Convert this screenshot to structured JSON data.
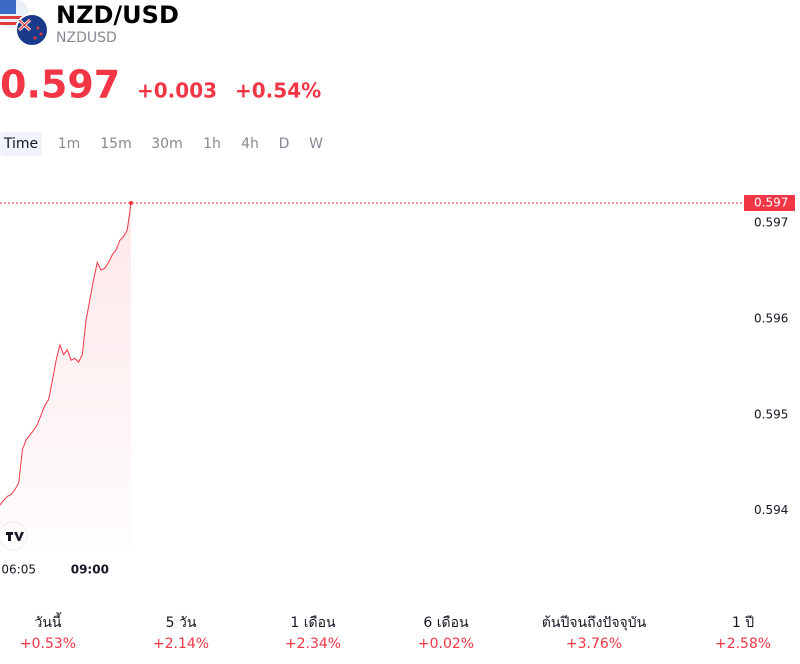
{
  "header": {
    "symbol": "NZD/USD",
    "code": "NZDUSD",
    "price": "0.597",
    "change": "+0.003",
    "change_percent": "+0.54%"
  },
  "timeframes": [
    "Time",
    "1m",
    "15m",
    "30m",
    "1h",
    "4h",
    "D",
    "W"
  ],
  "selected_timeframe": 0,
  "chart_data": {
    "type": "line",
    "categories": [
      null,
      null,
      null,
      null,
      null,
      "06:05",
      null,
      null,
      null,
      null,
      null,
      null,
      null,
      null,
      null,
      null,
      null,
      null,
      null,
      null,
      null,
      null,
      null,
      null,
      "09:00",
      null,
      null,
      null,
      null,
      null,
      null,
      null,
      null,
      null,
      null,
      null
    ],
    "series": [
      {
        "name": "NZDUSD",
        "color": "#f23645",
        "values": [
          0.59406,
          0.59411,
          0.59415,
          0.59417,
          0.59422,
          0.59429,
          0.59464,
          0.59474,
          0.59479,
          0.59484,
          0.5949,
          0.595,
          0.5951,
          0.59516,
          0.59536,
          0.59557,
          0.59573,
          0.59563,
          0.59568,
          0.59557,
          0.59559,
          0.59555,
          0.59563,
          0.59599,
          0.5962,
          0.59641,
          0.59659,
          0.59651,
          0.59653,
          0.59659,
          0.59667,
          0.59672,
          0.59682,
          0.59686,
          0.59693,
          0.59721
        ]
      }
    ],
    "ylim": [
      0.59359,
      0.59745
    ],
    "yticks": [
      0.594,
      0.595,
      0.596,
      0.597
    ],
    "price_line": {
      "value": 0.59721,
      "label": "0.597"
    }
  },
  "performance": [
    {
      "period": "วันนี้",
      "change": "+0.53%"
    },
    {
      "period": "5 วัน",
      "change": "+2.14%"
    },
    {
      "period": "1 เดือน",
      "change": "+2.34%"
    },
    {
      "period": "6 เดือน",
      "change": "+0.02%"
    },
    {
      "period": "ต้นปีจนถึงปัจจุบัน",
      "change": "+3.76%"
    },
    {
      "period": "1 ปี",
      "change": "+2.58%"
    }
  ]
}
